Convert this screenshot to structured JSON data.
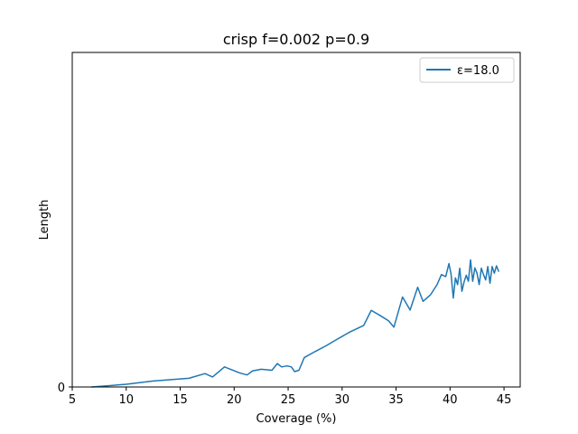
{
  "chart_data": {
    "type": "line",
    "title": "crisp f=0.002 p=0.9",
    "xlabel": "Coverage (%)",
    "ylabel": "Length",
    "xlim": [
      5,
      46.5
    ],
    "ylim": [
      0,
      100
    ],
    "xticks": [
      5,
      10,
      15,
      20,
      25,
      30,
      35,
      40,
      45
    ],
    "yticks": [
      0
    ],
    "legend_position": "top-right",
    "grid": false,
    "series": [
      {
        "name": "ε=18.0",
        "color": "#1f77b4",
        "x": [
          6.8,
          10.0,
          12.5,
          15.8,
          17.3,
          18.0,
          19.1,
          20.5,
          21.2,
          21.7,
          22.5,
          23.5,
          24.0,
          24.4,
          24.9,
          25.3,
          25.6,
          26.0,
          26.5,
          27.5,
          28.5,
          29.5,
          30.7,
          32.0,
          32.7,
          33.5,
          34.3,
          34.8,
          35.6,
          36.3,
          37.0,
          37.5,
          38.2,
          38.8,
          39.2,
          39.6,
          39.9,
          40.1,
          40.3,
          40.5,
          40.7,
          40.9,
          41.1,
          41.3,
          41.5,
          41.7,
          41.9,
          42.1,
          42.3,
          42.5,
          42.7,
          42.9,
          43.1,
          43.3,
          43.5,
          43.7,
          43.9,
          44.1,
          44.3,
          44.5
        ],
        "y": [
          0.0,
          0.8,
          1.8,
          2.6,
          4.0,
          3.0,
          6.0,
          4.2,
          3.6,
          4.8,
          5.3,
          5.0,
          7.0,
          6.0,
          6.3,
          6.0,
          4.6,
          5.0,
          8.8,
          10.6,
          12.3,
          14.2,
          16.4,
          18.4,
          22.9,
          21.4,
          19.8,
          17.9,
          26.9,
          23.0,
          29.8,
          25.6,
          27.6,
          30.6,
          33.6,
          33.0,
          36.9,
          33.6,
          26.6,
          32.6,
          30.6,
          35.5,
          28.6,
          31.4,
          33.4,
          31.6,
          38.0,
          31.6,
          35.6,
          34.0,
          30.6,
          35.5,
          33.6,
          32.0,
          36.0,
          31.0,
          36.0,
          34.0,
          36.2,
          34.6
        ]
      }
    ]
  }
}
